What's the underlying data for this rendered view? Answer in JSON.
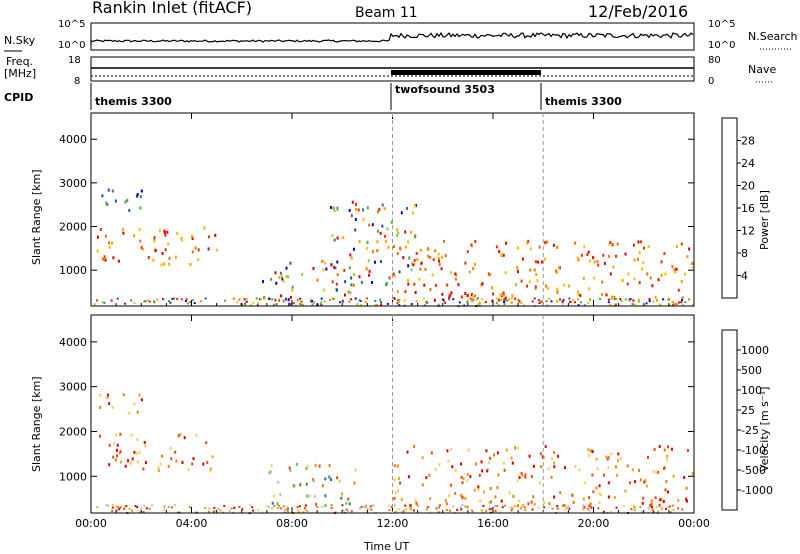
{
  "header": {
    "station": "Rankin Inlet (fitACF)",
    "beam": "Beam 11",
    "date": "12/Feb/2016"
  },
  "panels": {
    "noise_left_label": "N.Sky",
    "noise_right_label": "N.Search",
    "noise_left_ticks": [
      "10^5",
      "10^0"
    ],
    "noise_right_ticks": [
      "10^5",
      "10^0"
    ],
    "freq_left_label": "Freq.",
    "freq_unit": "[MHz]",
    "freq_ticks": [
      "18",
      "8"
    ],
    "nave_label": "Nave",
    "nave_ticks": [
      "80",
      "0"
    ],
    "cpid_label": "CPID",
    "cpid_segments": [
      {
        "name": "themis 3300",
        "start_h": 0,
        "end_h": 12
      },
      {
        "name": "twofsound 3503",
        "start_h": 12,
        "end_h": 18
      },
      {
        "name": "themis 3300",
        "start_h": 18,
        "end_h": 24
      }
    ]
  },
  "colors": {
    "power_scale": [
      "#0000dd",
      "#1e4fa8",
      "#3a7d6c",
      "#4aa84a",
      "#8ed040",
      "#f2c200",
      "#f7a000",
      "#f07000",
      "#e83000",
      "#d80000"
    ],
    "velocity_scale": [
      "#2040b0",
      "#2e6e9e",
      "#3c8a4a",
      "#5ec440",
      "#bdbdbd",
      "#f4d060",
      "#f0a020",
      "#ee7a10",
      "#e84a10",
      "#d80000"
    ]
  },
  "chart_data": [
    {
      "type": "heatmap",
      "name": "power",
      "title": "Rankin Inlet (fitACF)",
      "xlabel": "",
      "ylabel": "Slant Range [km]",
      "xlim": [
        0,
        24
      ],
      "ylim": [
        180,
        4600
      ],
      "x_ticks": [
        "00:00",
        "04:00",
        "08:00",
        "12:00",
        "16:00",
        "20:00",
        "00:00"
      ],
      "y_ticks": [
        1000,
        2000,
        3000,
        4000
      ],
      "colorbar_label": "Power [dB]",
      "colorbar_ticks": [
        "4",
        "8",
        "12",
        "16",
        "20",
        "24",
        "28"
      ],
      "colorbar_range": [
        0,
        30
      ],
      "regions": [
        {
          "x": [
            0.2,
            5.0
          ],
          "y": [
            1150,
            2000
          ],
          "level": "high"
        },
        {
          "x": [
            0.2,
            2.0
          ],
          "y": [
            2400,
            2900
          ],
          "level": "low"
        },
        {
          "x": [
            6.8,
            10.5
          ],
          "y": [
            300,
            1300
          ],
          "level": "mixed"
        },
        {
          "x": [
            9.5,
            13.0
          ],
          "y": [
            700,
            2600
          ],
          "level": "mixed"
        },
        {
          "x": [
            12.0,
            24.0
          ],
          "y": [
            300,
            1700
          ],
          "level": "high"
        }
      ]
    },
    {
      "type": "heatmap",
      "name": "velocity",
      "xlabel": "Time UT",
      "ylabel": "Slant Range [km]",
      "xlim": [
        0,
        24
      ],
      "ylim": [
        180,
        4600
      ],
      "x_ticks": [
        "00:00",
        "04:00",
        "08:00",
        "12:00",
        "16:00",
        "20:00",
        "00:00"
      ],
      "y_ticks": [
        1000,
        2000,
        3000,
        4000
      ],
      "colorbar_label": "Velocity [m s⁻¹]",
      "colorbar_ticks": [
        "1000",
        "500",
        "100",
        "25",
        "-25",
        "-100",
        "-500",
        "-1000"
      ],
      "regions": [
        {
          "x": [
            0.2,
            5.0
          ],
          "y": [
            1150,
            2000
          ],
          "level": "negative"
        },
        {
          "x": [
            0.2,
            2.0
          ],
          "y": [
            2400,
            2900
          ],
          "level": "negative"
        },
        {
          "x": [
            6.8,
            10.5
          ],
          "y": [
            300,
            1300
          ],
          "level": "mixed"
        },
        {
          "x": [
            12.0,
            24.0
          ],
          "y": [
            300,
            1700
          ],
          "level": "negative"
        }
      ]
    }
  ]
}
